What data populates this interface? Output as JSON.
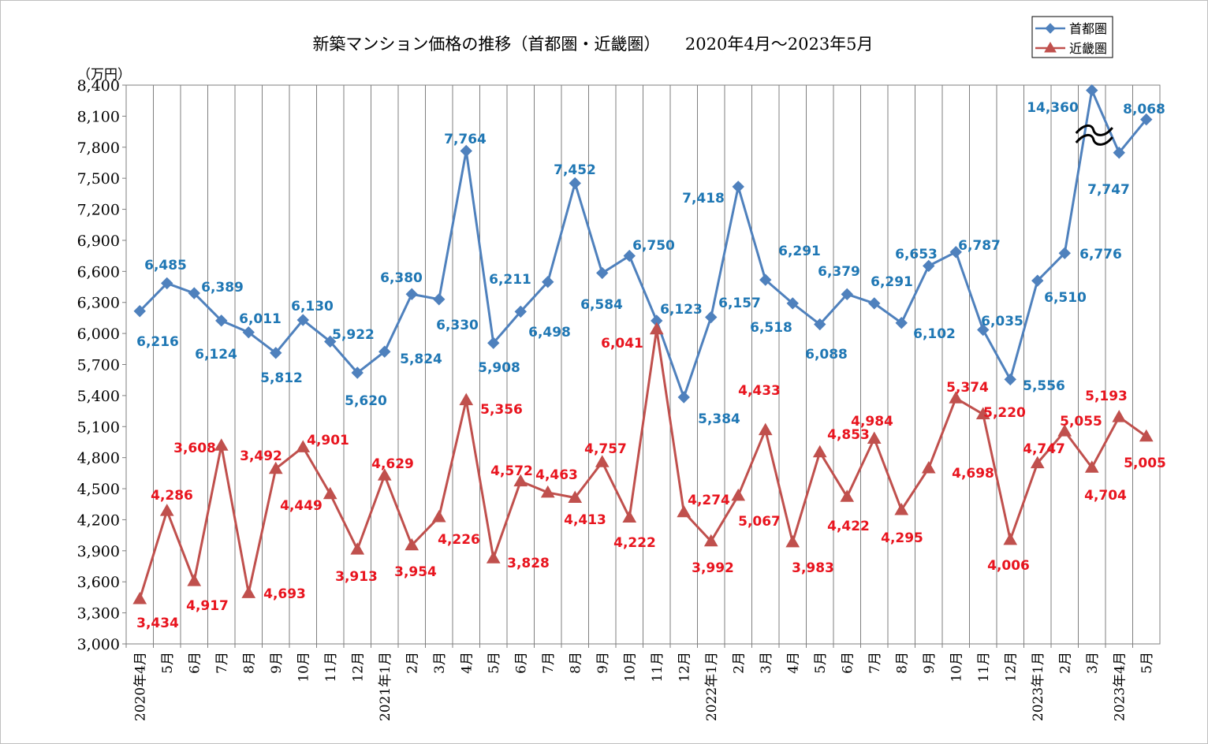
{
  "chart_data": {
    "type": "line",
    "title": "新築マンション価格の推移（首都圏・近畿圏）　　2020年4月～2023年5月",
    "ylabel": "（万円）",
    "ylim": [
      3000,
      8400
    ],
    "yticks": [
      "3,000",
      "3,300",
      "3,600",
      "3,900",
      "4,200",
      "4,500",
      "4,800",
      "5,100",
      "5,400",
      "5,700",
      "6,000",
      "6,300",
      "6,600",
      "6,900",
      "7,200",
      "7,500",
      "7,800",
      "8,100",
      "8,400"
    ],
    "categories": [
      "2020年4月",
      "5月",
      "6月",
      "7月",
      "8月",
      "9月",
      "10月",
      "11月",
      "12月",
      "2021年1月",
      "2月",
      "3月",
      "4月",
      "5月",
      "6月",
      "7月",
      "8月",
      "9月",
      "10月",
      "11月",
      "12月",
      "2022年1月",
      "2月",
      "3月",
      "4月",
      "5月",
      "6月",
      "7月",
      "8月",
      "9月",
      "10月",
      "11月",
      "12月",
      "2023年1月",
      "2月",
      "3月",
      "2023年4月",
      "5月"
    ],
    "grid": true,
    "legend": "top-right",
    "axis_break": {
      "series": "首都圏",
      "category_index": 35
    },
    "series": [
      {
        "name": "首都圏",
        "color": "#4f81bd",
        "label_color": "#1f77b4",
        "marker": "diamond",
        "values": [
          6216,
          6485,
          6389,
          6124,
          6011,
          5812,
          6130,
          5922,
          5620,
          5824,
          6380,
          6330,
          7764,
          5908,
          6211,
          6498,
          7452,
          6584,
          6750,
          6123,
          5384,
          6157,
          7418,
          6518,
          6291,
          6088,
          6379,
          6291,
          6102,
          6653,
          6787,
          6035,
          5556,
          6510,
          6776,
          14360,
          7747,
          8068
        ],
        "labels": [
          "6,216",
          "6,485",
          "6,389",
          "6,124",
          "6,011",
          "5,812",
          "6,130",
          "5,922",
          "5,620",
          "5,824",
          "6,380",
          "6,330",
          "7,764",
          "5,908",
          "6,211",
          "6,498",
          "7,452",
          "6,584",
          "6,750",
          "6,123",
          "5,384",
          "6,157",
          "7,418",
          "6,518",
          "6,291",
          "6,088",
          "6,379",
          "6,291",
          "6,102",
          "6,653",
          "6,787",
          "6,035",
          "5,556",
          "6,510",
          "6,776",
          "14,360",
          "7,747",
          "8,068"
        ]
      },
      {
        "name": "近畿圏",
        "color": "#c0504d",
        "label_color": "#e8141e",
        "marker": "triangle",
        "values": [
          3434,
          4286,
          3608,
          4917,
          3492,
          4693,
          4901,
          4449,
          3913,
          4629,
          3954,
          4226,
          5356,
          3828,
          4572,
          4463,
          4413,
          4757,
          4222,
          6041,
          4274,
          3992,
          4433,
          5067,
          3983,
          4853,
          4422,
          4984,
          4295,
          4698,
          5374,
          5220,
          4006,
          4747,
          5055,
          4704,
          5193,
          5005
        ],
        "labels": [
          "3,434",
          "4,286",
          "3,608",
          "4,917",
          "3,492",
          "4,693",
          "4,901",
          "4,449",
          "3,913",
          "4,629",
          "3,954",
          "4,226",
          "5,356",
          "3,828",
          "4,572",
          "4,463",
          "4,413",
          "4,757",
          "4,222",
          "6,041",
          "4,274",
          "3,992",
          "4,433",
          "5,067",
          "3,983",
          "4,853",
          "4,422",
          "4,984",
          "4,295",
          "4,698",
          "5,374",
          "5,220",
          "4,006",
          "4,747",
          "5,055",
          "4,704",
          "5,193",
          "5,005"
        ]
      }
    ]
  }
}
